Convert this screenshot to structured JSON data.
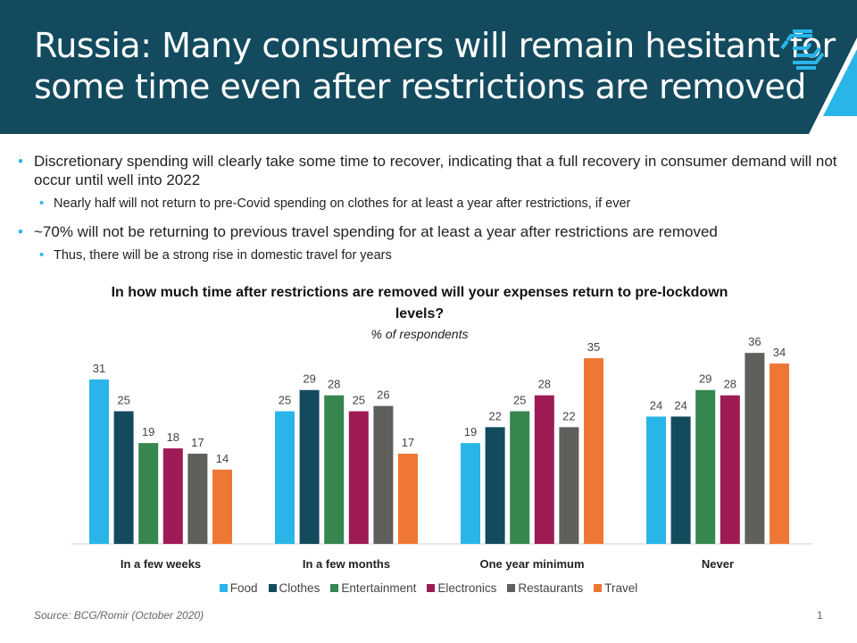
{
  "header": {
    "title_line1": "Russia: Many consumers will remain hesitant for",
    "title_line2": "some time even after restrictions are removed",
    "bg_color": "#134a5e",
    "accent_color": "#29b5e8"
  },
  "bullets": [
    {
      "text": "Discretionary spending will clearly take some time to recover, indicating that a full recovery in consumer demand will not occur until well into 2022",
      "sub": "Nearly half will not return to pre-Covid spending on clothes for at least a year after restrictions, if ever"
    },
    {
      "text": "~70% will not be returning to previous travel spending for at least a year after restrictions are removed",
      "sub": "Thus, there will be a strong rise in domestic travel for years"
    }
  ],
  "chart_data": {
    "type": "bar",
    "title": "In how much time after restrictions are removed will your expenses return to pre-lockdown levels?",
    "subtitle": "% of respondents",
    "categories": [
      "In a few weeks",
      "In a few months",
      "One year minimum",
      "Never"
    ],
    "series": [
      {
        "name": "Food",
        "color": "#29b5e8",
        "values": [
          31,
          25,
          19,
          24
        ]
      },
      {
        "name": "Clothes",
        "color": "#134a5e",
        "values": [
          25,
          29,
          22,
          24
        ]
      },
      {
        "name": "Entertainment",
        "color": "#35864f",
        "values": [
          19,
          28,
          25,
          29
        ]
      },
      {
        "name": "Electronics",
        "color": "#9e1b56",
        "values": [
          18,
          25,
          28,
          28
        ]
      },
      {
        "name": "Restaurants",
        "color": "#5f5f5b",
        "values": [
          17,
          26,
          22,
          36
        ]
      },
      {
        "name": "Travel",
        "color": "#ee7735",
        "values": [
          14,
          17,
          35,
          34
        ]
      }
    ],
    "ylim": [
      0,
      40
    ],
    "grid": false,
    "legend": "bottom",
    "data_labels": true
  },
  "footer": {
    "source": "Source: BCG/Romir (October 2020)",
    "page": "1"
  }
}
